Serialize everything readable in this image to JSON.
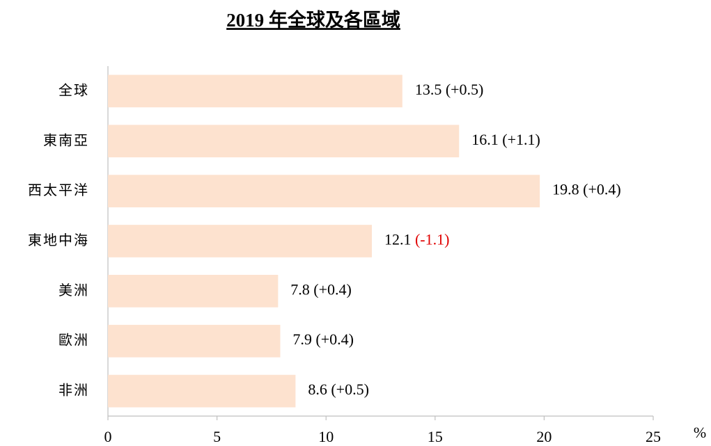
{
  "chart_data": {
    "type": "barh",
    "title": "2019 年全球及各區域",
    "categories": [
      "全球",
      "東南亞",
      "西太平洋",
      "東地中海",
      "美洲",
      "歐洲",
      "非洲"
    ],
    "values": [
      13.5,
      16.1,
      19.8,
      12.1,
      7.8,
      7.9,
      8.6
    ],
    "changes": [
      0.5,
      1.1,
      0.4,
      -1.1,
      0.4,
      0.4,
      0.5
    ],
    "change_labels": [
      "(+0.5)",
      "(+1.1)",
      "(+0.4)",
      "(-1.1)",
      "(+0.4)",
      "(+0.4)",
      "(+0.5)"
    ],
    "color": "#fde2cf",
    "change_color": "#000000",
    "negative_change_color": "#e00000",
    "xlabel": "%",
    "xlim": [
      0,
      25
    ],
    "xticks": [
      0,
      5,
      10,
      15,
      20,
      25
    ]
  }
}
